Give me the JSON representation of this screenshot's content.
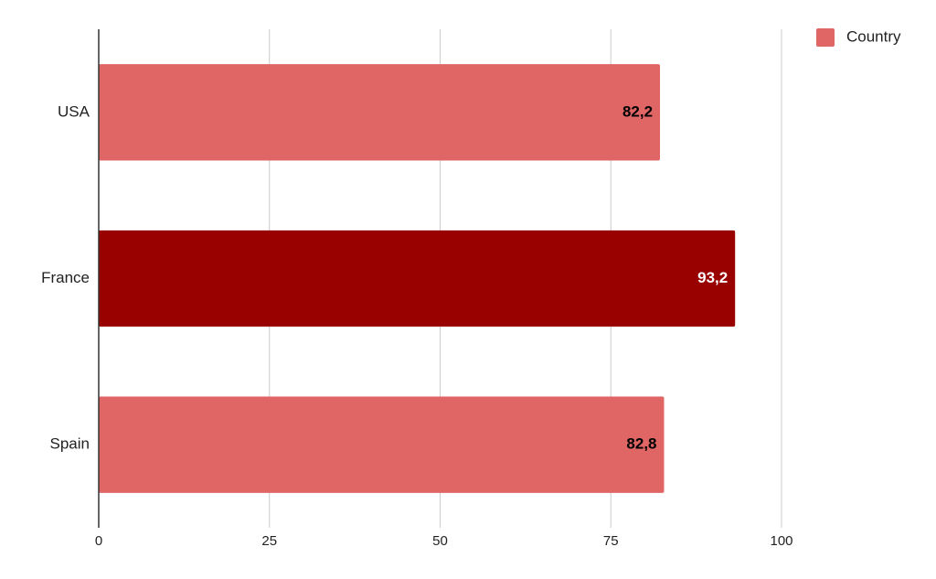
{
  "chart_data": {
    "type": "bar",
    "orientation": "horizontal",
    "categories": [
      "USA",
      "France",
      "Spain"
    ],
    "series": [
      {
        "name": "Country",
        "color": "#e06666",
        "values": [
          82.2,
          93.2,
          82.8
        ],
        "value_labels": [
          "82,2",
          "93,2",
          "82,8"
        ],
        "colors": [
          "#e06666",
          "#990000",
          "#e06666"
        ]
      }
    ],
    "xlim": [
      0,
      100
    ],
    "xticks": [
      0,
      25,
      50,
      75,
      100
    ],
    "grid": true,
    "legend": "top-right"
  }
}
